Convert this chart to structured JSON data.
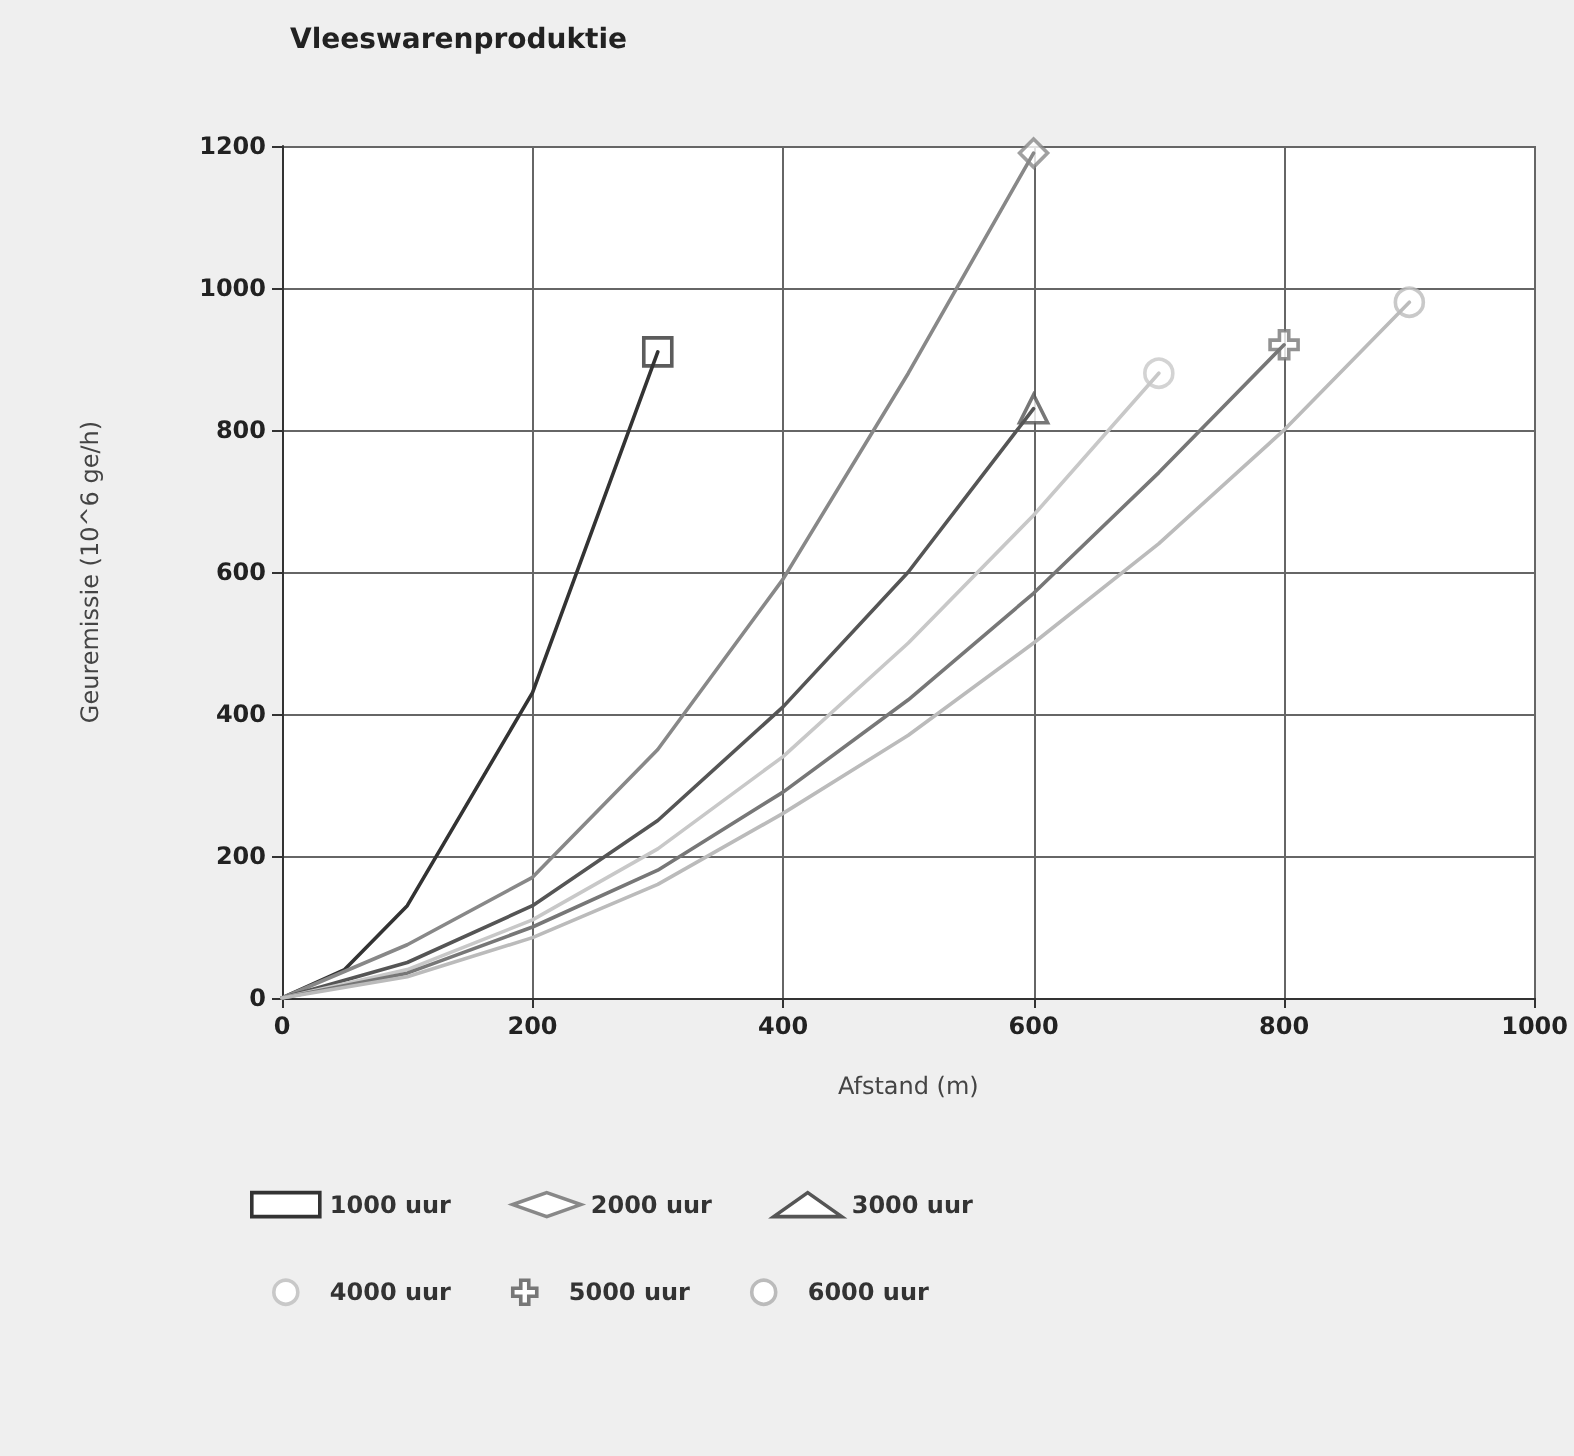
{
  "chart_data": {
    "type": "line",
    "title": "Vleeswarenproduktie",
    "xlabel": "Afstand (m)",
    "ylabel": "Geuremissie (10^6 ge/h)",
    "xlim": [
      0,
      1000
    ],
    "xticks": [
      0,
      200,
      400,
      600,
      800,
      1000
    ],
    "ylim": [
      0,
      1200
    ],
    "yticks": [
      0,
      200,
      400,
      600,
      800,
      1000,
      1200
    ],
    "grid": true,
    "legend": "bottom",
    "series": [
      {
        "name": "1000 uur",
        "color": "#333333",
        "marker": "none",
        "x": [
          0,
          50,
          100,
          200,
          300
        ],
        "values": [
          0,
          40,
          130,
          430,
          910
        ]
      },
      {
        "type": "scatter",
        "color": "#333333",
        "marker": "square",
        "x": [
          300
        ],
        "values": [
          910
        ]
      },
      {
        "name": "2000 uur",
        "color": "#888888",
        "marker": "none",
        "x": [
          0,
          100,
          200,
          300,
          400,
          500,
          600
        ],
        "values": [
          0,
          75,
          170,
          350,
          590,
          880,
          1190
        ]
      },
      {
        "type": "scatter",
        "color": "#888888",
        "marker": "diamond",
        "x": [
          600
        ],
        "values": [
          1190
        ]
      },
      {
        "name": "3000 uur",
        "color": "#555555",
        "marker": "none",
        "x": [
          0,
          100,
          200,
          300,
          400,
          500,
          600
        ],
        "values": [
          0,
          50,
          130,
          250,
          410,
          600,
          830
        ]
      },
      {
        "type": "scatter",
        "color": "#555555",
        "marker": "triangle",
        "x": [
          600
        ],
        "values": [
          830
        ]
      },
      {
        "name": "4000 uur",
        "color": "#c8c8c8",
        "marker": "none",
        "x": [
          0,
          100,
          200,
          300,
          400,
          500,
          600,
          700
        ],
        "values": [
          0,
          40,
          110,
          210,
          340,
          500,
          680,
          880
        ]
      },
      {
        "type": "scatter",
        "color": "#c8c8c8",
        "marker": "circle",
        "x": [
          700
        ],
        "values": [
          880
        ]
      },
      {
        "name": "5000 uur",
        "color": "#777777",
        "marker": "none",
        "x": [
          0,
          100,
          200,
          300,
          400,
          500,
          600,
          700,
          800
        ],
        "values": [
          0,
          35,
          100,
          180,
          290,
          420,
          570,
          740,
          920
        ]
      },
      {
        "type": "scatter",
        "color": "#777777",
        "marker": "cross",
        "x": [
          800
        ],
        "values": [
          920
        ]
      },
      {
        "name": "6000 uur",
        "color": "#bbbbbb",
        "marker": "none",
        "x": [
          0,
          100,
          200,
          300,
          400,
          500,
          600,
          700,
          800,
          900
        ],
        "values": [
          0,
          30,
          85,
          160,
          260,
          370,
          500,
          640,
          800,
          980
        ]
      },
      {
        "type": "scatter",
        "color": "#bbbbbb",
        "marker": "circle",
        "x": [
          900
        ],
        "values": [
          980
        ]
      }
    ]
  }
}
